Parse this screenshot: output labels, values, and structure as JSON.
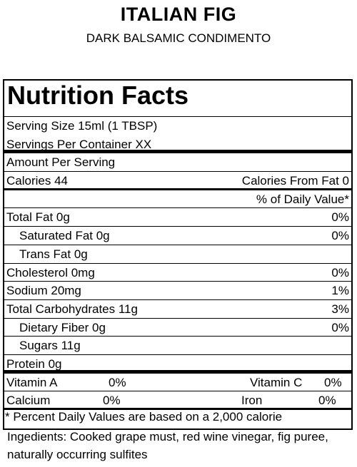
{
  "header": {
    "title": "ITALIAN FIG",
    "subtitle": "DARK BALSAMIC CONDIMENTO"
  },
  "label": {
    "heading": "Nutrition Facts",
    "serving_size": "Serving Size  15ml (1 TBSP)",
    "servings_per_container": "Servings Per Container  XX",
    "amount_per_serving": "Amount Per Serving",
    "calories": "Calories  44",
    "calories_from_fat": "Calories From Fat 0",
    "dv_header": "% of Daily Value*",
    "nutrients": [
      {
        "name": "Total Fat  0g",
        "dv": "0%"
      },
      {
        "name": "Saturated Fat   0g",
        "dv": "0%"
      },
      {
        "name": "Trans Fat  0g",
        "dv": ""
      },
      {
        "name": "Cholesterol   0mg",
        "dv": "0%"
      },
      {
        "name": "Sodium  20mg",
        "dv": "1%"
      },
      {
        "name": "Total Carbohydrates 11g",
        "dv": "3%"
      },
      {
        "name": "Dietary Fiber   0g",
        "dv": "0%"
      },
      {
        "name": "Sugars   11g",
        "dv": ""
      },
      {
        "name": "Protein  0g",
        "dv": ""
      }
    ],
    "vitamins": [
      {
        "left_name": "Vitamin A",
        "left_dv": "0%",
        "right_name": "Vitamin C",
        "right_dv": "0%"
      },
      {
        "left_name": "Calcium",
        "left_dv": "0%",
        "right_name": "Iron",
        "right_dv": "0%"
      }
    ],
    "footnote": "* Percent Daily Values are based on a 2,000 calorie"
  },
  "ingredients": "Ingedients:  Cooked grape must, red wine vinegar, fig puree, naturally occurring sulfites"
}
